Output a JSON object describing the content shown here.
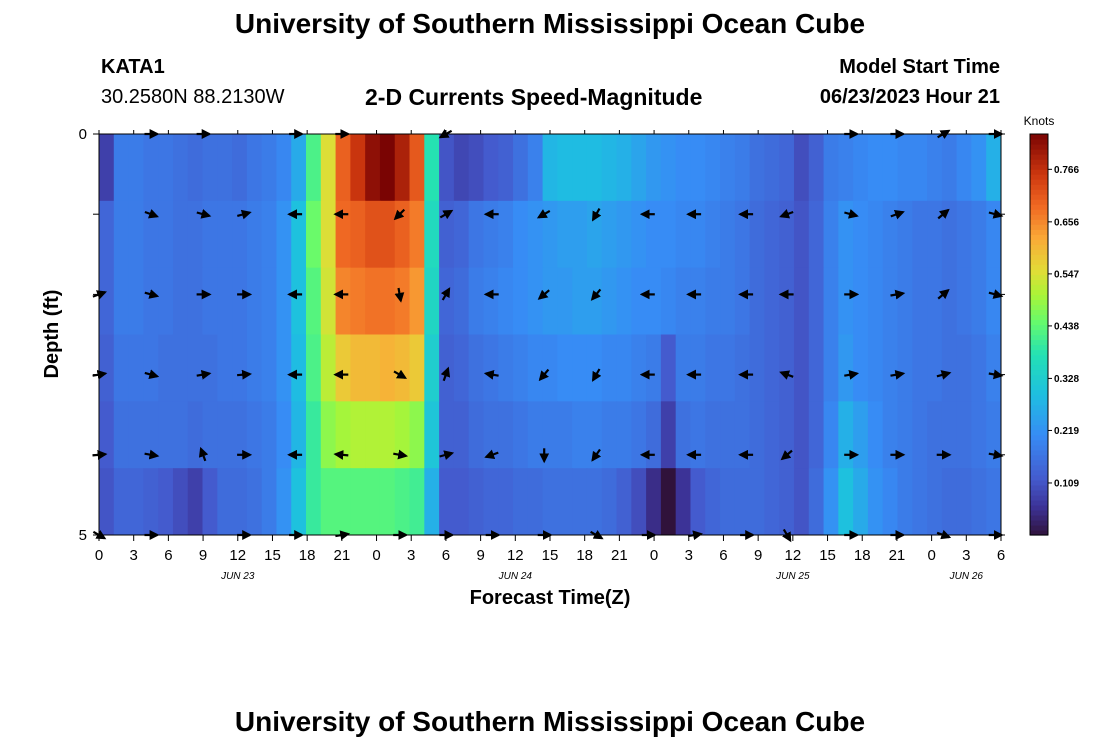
{
  "header": {
    "title": "University of Southern Mississippi Ocean Cube",
    "station_id": "KATA1",
    "station_coords": "30.2580N  88.2130W",
    "subtitle": "2-D Currents Speed-Magnitude",
    "model_start_label": "Model Start Time",
    "model_start_value": "06/23/2023 Hour 21"
  },
  "footer": {
    "title": "University of Southern Mississippi Ocean Cube"
  },
  "chart_data": {
    "type": "heatmap",
    "title": "2-D Currents Speed-Magnitude",
    "xlabel": "Forecast Time(Z)",
    "ylabel": "Depth (ft)",
    "x_hours": [
      0,
      3,
      6,
      9,
      12,
      15,
      18,
      21,
      24,
      27,
      30,
      33,
      36,
      39,
      42,
      45,
      48,
      51,
      54,
      57,
      60,
      63,
      66,
      69,
      72,
      75,
      78
    ],
    "x_tick_labels": [
      "0",
      "3",
      "6",
      "9",
      "12",
      "15",
      "18",
      "21",
      "0",
      "3",
      "6",
      "9",
      "12",
      "15",
      "18",
      "21",
      "0",
      "3",
      "6",
      "9",
      "12",
      "15",
      "18",
      "21",
      "0",
      "3",
      "6"
    ],
    "date_labels": [
      {
        "text": "JUN 23",
        "hour": 12
      },
      {
        "text": "JUN 24",
        "hour": 36
      },
      {
        "text": "JUN 25",
        "hour": 60
      },
      {
        "text": "JUN 26",
        "hour": 75
      }
    ],
    "y_tick_labels": [
      {
        "depth": 0,
        "label": "0"
      },
      {
        "depth": 1,
        "label": ""
      },
      {
        "depth": 2,
        "label": ""
      },
      {
        "depth": 3,
        "label": ""
      },
      {
        "depth": 4,
        "label": ""
      },
      {
        "depth": 5,
        "label": "5"
      }
    ],
    "ylim": [
      0,
      5
    ],
    "xlim": [
      0,
      78
    ],
    "colorbar": {
      "unit": "Knots",
      "min": 0.0,
      "max": 0.84,
      "ticks": [
        "0.109",
        "0.219",
        "0.328",
        "0.438",
        "0.547",
        "0.656",
        "0.766"
      ]
    },
    "speed_rows": [
      [
        0.08,
        0.18,
        0.18,
        0.17,
        0.17,
        0.16,
        0.15,
        0.16,
        0.16,
        0.15,
        0.17,
        0.18,
        0.2,
        0.26,
        0.42,
        0.55,
        0.7,
        0.76,
        0.82,
        0.84,
        0.79,
        0.71,
        0.38,
        0.11,
        0.09,
        0.1,
        0.12,
        0.13,
        0.16,
        0.19,
        0.28,
        0.29,
        0.29,
        0.29,
        0.28,
        0.27,
        0.25,
        0.23,
        0.22,
        0.21,
        0.21,
        0.2,
        0.19,
        0.18,
        0.16,
        0.15,
        0.14,
        0.1,
        0.13,
        0.18,
        0.19,
        0.2,
        0.21,
        0.21,
        0.2,
        0.2,
        0.19,
        0.18,
        0.2,
        0.22,
        0.27
      ],
      [
        0.14,
        0.18,
        0.18,
        0.17,
        0.17,
        0.16,
        0.16,
        0.17,
        0.17,
        0.17,
        0.18,
        0.19,
        0.22,
        0.3,
        0.45,
        0.55,
        0.69,
        0.7,
        0.72,
        0.72,
        0.7,
        0.67,
        0.36,
        0.13,
        0.14,
        0.17,
        0.18,
        0.19,
        0.21,
        0.22,
        0.23,
        0.24,
        0.24,
        0.25,
        0.24,
        0.23,
        0.22,
        0.21,
        0.21,
        0.2,
        0.2,
        0.19,
        0.18,
        0.17,
        0.15,
        0.14,
        0.13,
        0.11,
        0.14,
        0.19,
        0.22,
        0.21,
        0.2,
        0.19,
        0.18,
        0.17,
        0.17,
        0.16,
        0.17,
        0.18,
        0.2
      ],
      [
        0.14,
        0.18,
        0.18,
        0.17,
        0.17,
        0.16,
        0.16,
        0.17,
        0.17,
        0.17,
        0.18,
        0.19,
        0.22,
        0.3,
        0.43,
        0.54,
        0.66,
        0.67,
        0.68,
        0.68,
        0.67,
        0.64,
        0.35,
        0.14,
        0.15,
        0.18,
        0.19,
        0.2,
        0.21,
        0.22,
        0.23,
        0.23,
        0.24,
        0.24,
        0.23,
        0.22,
        0.21,
        0.21,
        0.2,
        0.19,
        0.19,
        0.18,
        0.18,
        0.17,
        0.15,
        0.14,
        0.13,
        0.11,
        0.14,
        0.19,
        0.22,
        0.21,
        0.2,
        0.19,
        0.18,
        0.17,
        0.17,
        0.16,
        0.17,
        0.18,
        0.2
      ],
      [
        0.13,
        0.17,
        0.17,
        0.17,
        0.16,
        0.16,
        0.16,
        0.16,
        0.17,
        0.17,
        0.18,
        0.19,
        0.22,
        0.29,
        0.42,
        0.52,
        0.58,
        0.6,
        0.6,
        0.61,
        0.6,
        0.58,
        0.33,
        0.13,
        0.14,
        0.16,
        0.17,
        0.18,
        0.19,
        0.2,
        0.2,
        0.21,
        0.21,
        0.21,
        0.2,
        0.2,
        0.19,
        0.18,
        0.12,
        0.18,
        0.18,
        0.17,
        0.17,
        0.16,
        0.15,
        0.14,
        0.13,
        0.11,
        0.14,
        0.19,
        0.23,
        0.21,
        0.2,
        0.19,
        0.18,
        0.17,
        0.17,
        0.16,
        0.16,
        0.17,
        0.19
      ],
      [
        0.12,
        0.16,
        0.16,
        0.16,
        0.16,
        0.16,
        0.15,
        0.16,
        0.16,
        0.16,
        0.17,
        0.18,
        0.21,
        0.28,
        0.4,
        0.48,
        0.5,
        0.51,
        0.51,
        0.51,
        0.5,
        0.48,
        0.31,
        0.13,
        0.13,
        0.15,
        0.16,
        0.16,
        0.17,
        0.18,
        0.18,
        0.18,
        0.19,
        0.19,
        0.18,
        0.18,
        0.17,
        0.15,
        0.08,
        0.16,
        0.17,
        0.16,
        0.16,
        0.16,
        0.15,
        0.14,
        0.13,
        0.11,
        0.14,
        0.2,
        0.27,
        0.24,
        0.21,
        0.19,
        0.18,
        0.17,
        0.16,
        0.16,
        0.16,
        0.17,
        0.18
      ],
      [
        0.11,
        0.14,
        0.14,
        0.13,
        0.12,
        0.1,
        0.08,
        0.12,
        0.15,
        0.15,
        0.16,
        0.18,
        0.22,
        0.3,
        0.4,
        0.43,
        0.43,
        0.43,
        0.43,
        0.43,
        0.42,
        0.41,
        0.27,
        0.12,
        0.12,
        0.13,
        0.14,
        0.14,
        0.15,
        0.15,
        0.16,
        0.16,
        0.16,
        0.16,
        0.15,
        0.13,
        0.1,
        0.05,
        0.0,
        0.06,
        0.12,
        0.14,
        0.15,
        0.15,
        0.15,
        0.14,
        0.13,
        0.11,
        0.15,
        0.22,
        0.3,
        0.26,
        0.22,
        0.2,
        0.18,
        0.17,
        0.16,
        0.15,
        0.15,
        0.16,
        0.17
      ]
    ],
    "arrow_columns_hours": [
      0,
      4.5,
      9,
      12.5,
      17,
      21,
      26,
      30,
      34,
      38.5,
      43,
      47.5,
      51.5,
      56,
      59.5,
      65,
      69,
      73,
      77.5
    ],
    "arrow_directions_deg": [
      [
        null,
        0,
        0,
        null,
        0,
        0,
        null,
        210,
        null,
        null,
        null,
        null,
        null,
        null,
        null,
        0,
        0,
        30,
        0
      ],
      [
        null,
        340,
        345,
        15,
        180,
        180,
        225,
        30,
        180,
        210,
        240,
        180,
        180,
        180,
        200,
        345,
        20,
        40,
        345
      ],
      [
        20,
        345,
        0,
        0,
        180,
        180,
        280,
        60,
        180,
        220,
        230,
        180,
        180,
        180,
        180,
        0,
        10,
        40,
        345
      ],
      [
        10,
        345,
        10,
        5,
        180,
        180,
        330,
        70,
        170,
        230,
        240,
        180,
        180,
        180,
        160,
        10,
        10,
        15,
        350
      ],
      [
        5,
        350,
        110,
        0,
        180,
        175,
        350,
        15,
        200,
        270,
        235,
        180,
        180,
        180,
        220,
        0,
        0,
        0,
        350
      ],
      [
        330,
        0,
        null,
        0,
        0,
        10,
        0,
        0,
        0,
        0,
        330,
        0,
        10,
        0,
        300,
        0,
        0,
        340,
        0
      ]
    ]
  }
}
